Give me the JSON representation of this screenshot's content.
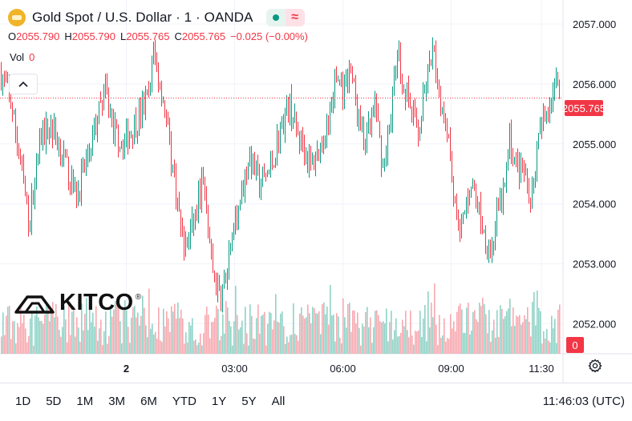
{
  "header": {
    "title": "Gold Spot / U.S. Dollar · 1 · OANDA",
    "approx_symbol": "≈",
    "ohlc": [
      {
        "key": "O",
        "value": "2055.790"
      },
      {
        "key": "H",
        "value": "2055.790"
      },
      {
        "key": "L",
        "value": "2055.765"
      },
      {
        "key": "C",
        "value": "2055.765"
      }
    ],
    "change": "−0.025 (−0.00%)",
    "volume_label": "Vol",
    "volume_value": "0",
    "collapse_icon": "chevron-up-icon"
  },
  "logo": {
    "text": "KITCO",
    "reg": "®"
  },
  "colors": {
    "up": "#089981",
    "down": "#f23645",
    "grid": "#f0f3fa",
    "axis_text": "#131722"
  },
  "chart_data": {
    "type": "candlestick",
    "title": "Gold Spot / U.S. Dollar · 1 · OANDA",
    "interval": "1 minute",
    "y_axis": {
      "ticks": [
        "2057.000",
        "2056.000",
        "2055.000",
        "2054.000",
        "2053.000",
        "2052.000"
      ],
      "tick_values": [
        2057,
        2056,
        2055,
        2054,
        2053,
        2052
      ],
      "range": [
        2051.5,
        2057.4
      ]
    },
    "x_axis": {
      "tick_labels": [
        "2",
        "03:00",
        "06:00",
        "09:00",
        "11:30"
      ],
      "tick_hours": [
        0,
        3,
        6,
        9,
        11.5
      ],
      "range_hours": [
        -3.5,
        12.1
      ]
    },
    "last_price": 2055.765,
    "last_price_label": "2055.765",
    "volume_last_label": "0",
    "price_path": [
      [
        -3.5,
        2056.2
      ],
      [
        -3.2,
        2055.7
      ],
      [
        -2.9,
        2054.5
      ],
      [
        -2.7,
        2053.7
      ],
      [
        -2.4,
        2055.1
      ],
      [
        -2.1,
        2055.3
      ],
      [
        -1.8,
        2054.9
      ],
      [
        -1.4,
        2054.1
      ],
      [
        -1.0,
        2055.0
      ],
      [
        -0.6,
        2055.9
      ],
      [
        -0.4,
        2055.3
      ],
      [
        -0.1,
        2055.0
      ],
      [
        0.3,
        2055.4
      ],
      [
        0.6,
        2055.8
      ],
      [
        0.75,
        2056.5
      ],
      [
        1.0,
        2055.8
      ],
      [
        1.3,
        2054.5
      ],
      [
        1.6,
        2053.2
      ],
      [
        1.9,
        2053.8
      ],
      [
        2.1,
        2054.4
      ],
      [
        2.4,
        2052.8
      ],
      [
        2.6,
        2052.4
      ],
      [
        2.9,
        2053.2
      ],
      [
        3.1,
        2054.0
      ],
      [
        3.4,
        2054.8
      ],
      [
        3.7,
        2054.3
      ],
      [
        4.0,
        2054.6
      ],
      [
        4.2,
        2055.1
      ],
      [
        4.5,
        2055.7
      ],
      [
        4.7,
        2055.2
      ],
      [
        4.9,
        2055.0
      ],
      [
        5.1,
        2054.6
      ],
      [
        5.4,
        2055.0
      ],
      [
        5.6,
        2055.4
      ],
      [
        5.8,
        2056.1
      ],
      [
        6.0,
        2055.9
      ],
      [
        6.2,
        2056.3
      ],
      [
        6.4,
        2055.5
      ],
      [
        6.6,
        2055.0
      ],
      [
        6.9,
        2055.6
      ],
      [
        7.1,
        2054.6
      ],
      [
        7.3,
        2055.4
      ],
      [
        7.5,
        2056.5
      ],
      [
        7.7,
        2055.9
      ],
      [
        7.9,
        2055.5
      ],
      [
        8.1,
        2055.2
      ],
      [
        8.3,
        2056.0
      ],
      [
        8.5,
        2056.5
      ],
      [
        8.7,
        2055.7
      ],
      [
        8.9,
        2055.3
      ],
      [
        9.1,
        2053.9
      ],
      [
        9.3,
        2053.6
      ],
      [
        9.5,
        2054.3
      ],
      [
        9.7,
        2054.1
      ],
      [
        9.9,
        2053.5
      ],
      [
        10.1,
        2053.2
      ],
      [
        10.3,
        2053.9
      ],
      [
        10.5,
        2054.3
      ],
      [
        10.6,
        2055.1
      ],
      [
        10.8,
        2054.6
      ],
      [
        11.0,
        2054.5
      ],
      [
        11.2,
        2054.1
      ],
      [
        11.4,
        2055.0
      ],
      [
        11.6,
        2055.5
      ],
      [
        11.8,
        2055.9
      ],
      [
        12.0,
        2056.1
      ]
    ]
  },
  "ranges": [
    "1D",
    "5D",
    "1M",
    "3M",
    "6M",
    "YTD",
    "1Y",
    "5Y",
    "All"
  ],
  "footer": {
    "clock": "11:46:03 (UTC)"
  }
}
